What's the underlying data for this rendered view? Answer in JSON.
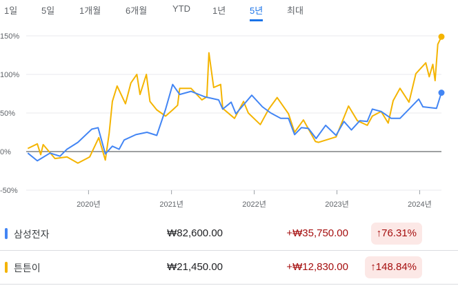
{
  "tabs": [
    {
      "label": "1일"
    },
    {
      "label": "5일"
    },
    {
      "label": "1개월"
    },
    {
      "label": "6개월"
    },
    {
      "label": "YTD"
    },
    {
      "label": "1년"
    },
    {
      "label": "5년",
      "active": true
    },
    {
      "label": "최대"
    }
  ],
  "colors": {
    "accent": "#1a73e8",
    "samsung": "#4285f4",
    "tuntun": "#f4b400",
    "negative_bg": "#fce8e6",
    "change_text": "#a50e0e"
  },
  "chart_data": {
    "type": "line",
    "ylim": [
      -50,
      150
    ],
    "yticks": [
      "150%",
      "100%",
      "50%",
      "0%",
      "-50%"
    ],
    "ytick_values": [
      150,
      100,
      50,
      0,
      -50
    ],
    "xticks": [
      {
        "label": "2020년",
        "date": "2020-01-01"
      },
      {
        "label": "2021년",
        "date": "2021-01-01"
      },
      {
        "label": "2022년",
        "date": "2022-01-01"
      },
      {
        "label": "2023년",
        "date": "2023-01-01"
      },
      {
        "label": "2024년",
        "date": "2024-01-01"
      }
    ],
    "xlim": [
      "2019-04-01",
      "2024-04-06"
    ],
    "grid": true,
    "series": [
      {
        "name": "삼성전자",
        "color": "#4285f4",
        "points": [
          [
            "2019-04-08",
            -2
          ],
          [
            "2019-05-20",
            -12
          ],
          [
            "2019-07-15",
            -2
          ],
          [
            "2019-08-28",
            -6
          ],
          [
            "2019-09-28",
            3
          ],
          [
            "2019-11-15",
            12
          ],
          [
            "2020-01-15",
            29
          ],
          [
            "2020-02-12",
            31
          ],
          [
            "2020-03-15",
            -3
          ],
          [
            "2020-04-15",
            7
          ],
          [
            "2020-05-15",
            3
          ],
          [
            "2020-06-06",
            15
          ],
          [
            "2020-07-28",
            22
          ],
          [
            "2020-09-15",
            25
          ],
          [
            "2020-10-28",
            21
          ],
          [
            "2020-12-06",
            55
          ],
          [
            "2021-01-06",
            87
          ],
          [
            "2021-02-06",
            74
          ],
          [
            "2021-03-28",
            78
          ],
          [
            "2021-05-28",
            71
          ],
          [
            "2021-07-28",
            67
          ],
          [
            "2021-08-15",
            55
          ],
          [
            "2021-09-21",
            64
          ],
          [
            "2021-10-12",
            49
          ],
          [
            "2021-12-21",
            73
          ],
          [
            "2022-02-06",
            58
          ],
          [
            "2022-03-15",
            50
          ],
          [
            "2022-04-28",
            43
          ],
          [
            "2022-06-01",
            43
          ],
          [
            "2022-06-28",
            22
          ],
          [
            "2022-07-28",
            31
          ],
          [
            "2022-08-28",
            30
          ],
          [
            "2022-10-01",
            17
          ],
          [
            "2022-11-12",
            34
          ],
          [
            "2022-12-28",
            21
          ],
          [
            "2023-02-01",
            39
          ],
          [
            "2023-03-06",
            28
          ],
          [
            "2023-04-12",
            40
          ],
          [
            "2023-05-15",
            39
          ],
          [
            "2023-06-06",
            55
          ],
          [
            "2023-07-15",
            52
          ],
          [
            "2023-08-28",
            43
          ],
          [
            "2023-10-06",
            43
          ],
          [
            "2023-11-15",
            55
          ],
          [
            "2023-12-28",
            68
          ],
          [
            "2024-01-15",
            58
          ],
          [
            "2024-03-15",
            56
          ],
          [
            "2024-04-06",
            76.31
          ]
        ]
      },
      {
        "name": "튼튼이",
        "color": "#f4b400",
        "points": [
          [
            "2019-04-08",
            4
          ],
          [
            "2019-05-20",
            10
          ],
          [
            "2019-06-04",
            -4
          ],
          [
            "2019-06-15",
            9
          ],
          [
            "2019-08-06",
            -9
          ],
          [
            "2019-09-28",
            -7
          ],
          [
            "2019-11-15",
            -15
          ],
          [
            "2020-01-06",
            -7
          ],
          [
            "2020-02-15",
            18
          ],
          [
            "2020-03-15",
            -11
          ],
          [
            "2020-04-01",
            24
          ],
          [
            "2020-04-15",
            65
          ],
          [
            "2020-05-06",
            85
          ],
          [
            "2020-06-12",
            62
          ],
          [
            "2020-07-06",
            89
          ],
          [
            "2020-08-01",
            100
          ],
          [
            "2020-08-15",
            74
          ],
          [
            "2020-09-12",
            100
          ],
          [
            "2020-09-28",
            65
          ],
          [
            "2020-10-28",
            54
          ],
          [
            "2020-12-06",
            46
          ],
          [
            "2021-01-06",
            54
          ],
          [
            "2021-01-28",
            60
          ],
          [
            "2021-02-06",
            82
          ],
          [
            "2021-03-28",
            82
          ],
          [
            "2021-05-15",
            67
          ],
          [
            "2021-06-06",
            71
          ],
          [
            "2021-06-15",
            128
          ],
          [
            "2021-07-06",
            83
          ],
          [
            "2021-08-06",
            87
          ],
          [
            "2021-08-15",
            56
          ],
          [
            "2021-10-06",
            43
          ],
          [
            "2021-11-15",
            65
          ],
          [
            "2021-12-06",
            50
          ],
          [
            "2022-01-28",
            35
          ],
          [
            "2022-03-06",
            55
          ],
          [
            "2022-04-12",
            70
          ],
          [
            "2022-06-01",
            49
          ],
          [
            "2022-06-28",
            25
          ],
          [
            "2022-08-06",
            41
          ],
          [
            "2022-09-28",
            13
          ],
          [
            "2022-10-12",
            12
          ],
          [
            "2022-12-28",
            19
          ],
          [
            "2023-02-21",
            59
          ],
          [
            "2023-04-01",
            40
          ],
          [
            "2023-05-15",
            34
          ],
          [
            "2023-06-06",
            46
          ],
          [
            "2023-07-15",
            52
          ],
          [
            "2023-08-15",
            37
          ],
          [
            "2023-09-06",
            66
          ],
          [
            "2023-10-06",
            82
          ],
          [
            "2023-11-15",
            64
          ],
          [
            "2023-12-15",
            101
          ],
          [
            "2024-01-28",
            115
          ],
          [
            "2024-02-12",
            97
          ],
          [
            "2024-02-28",
            113
          ],
          [
            "2024-03-09",
            92
          ],
          [
            "2024-03-21",
            139
          ],
          [
            "2024-04-06",
            148.84
          ]
        ]
      }
    ]
  },
  "comparison": [
    {
      "name": "삼성전자",
      "price": "₩82,600.00",
      "change": "+₩35,750.00",
      "percent": "↑76.31%",
      "color": "#4285f4"
    },
    {
      "name": "튼튼이",
      "price": "₩21,450.00",
      "change": "+₩12,830.00",
      "percent": "↑148.84%",
      "color": "#f4b400"
    }
  ]
}
